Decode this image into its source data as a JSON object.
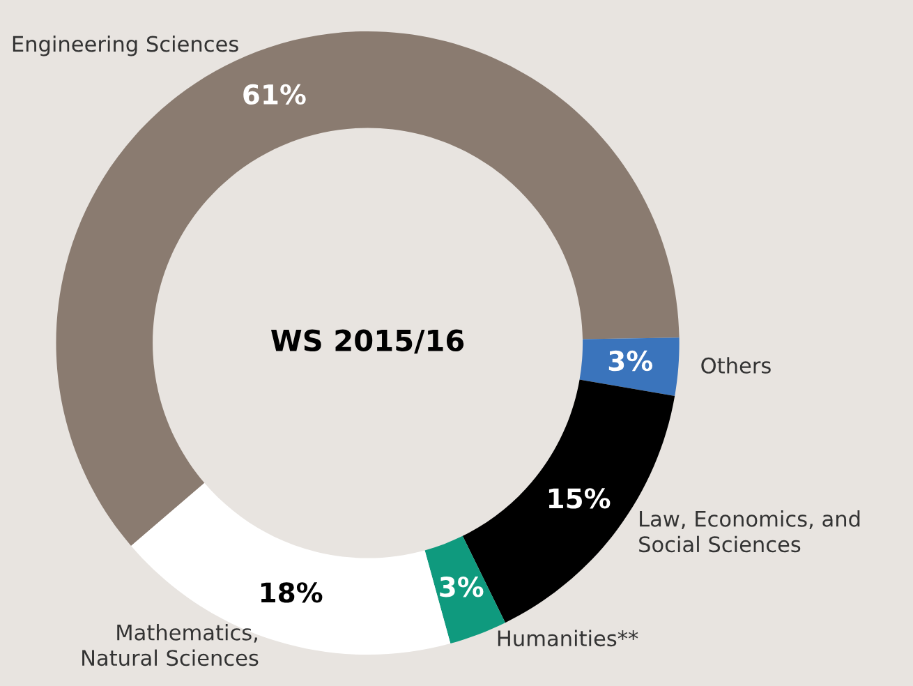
{
  "chart_data": {
    "type": "donut",
    "title": "WS 2015/16",
    "categories": [
      "Engineering Sciences",
      "Others",
      "Law, Economics, and\nSocial Sciences",
      "Humanities**",
      "Mathematics,\nNatural Sciences"
    ],
    "values": [
      61,
      3,
      15,
      3,
      18
    ],
    "colors": [
      "#8a7b70",
      "#3a74bc",
      "#000000",
      "#0f9a7e",
      "#ffffff"
    ],
    "value_labels": [
      "61%",
      "3%",
      "15%",
      "3%",
      "18%"
    ]
  }
}
